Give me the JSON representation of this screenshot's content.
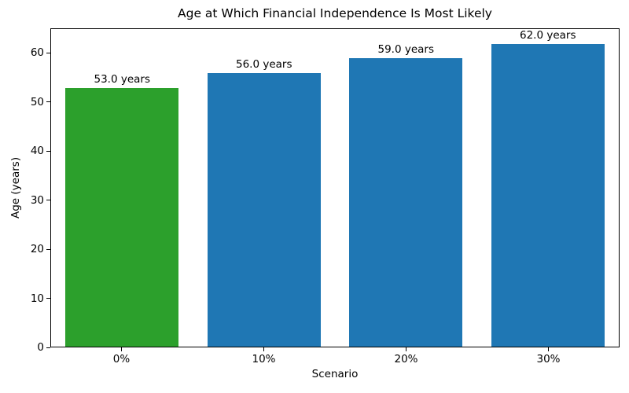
{
  "chart_data": {
    "type": "bar",
    "title": "Age at Which Financial Independence Is Most Likely",
    "xlabel": "Scenario",
    "ylabel": "Age (years)",
    "categories": [
      "0%",
      "10%",
      "20%",
      "30%"
    ],
    "values": [
      53.0,
      56.0,
      59.0,
      62.0
    ],
    "bar_labels": [
      "53.0 years",
      "56.0 years",
      "59.0 years",
      "62.0 years"
    ],
    "bar_colors": [
      "#2ca02c",
      "#1f77b4",
      "#1f77b4",
      "#1f77b4"
    ],
    "ylim": [
      0,
      65
    ],
    "yticks": [
      0,
      10,
      20,
      30,
      40,
      50,
      60
    ],
    "grid": false,
    "legend": null,
    "spine_color": "#000000",
    "background_color": "#ffffff",
    "bar_width_fraction": 0.8
  }
}
